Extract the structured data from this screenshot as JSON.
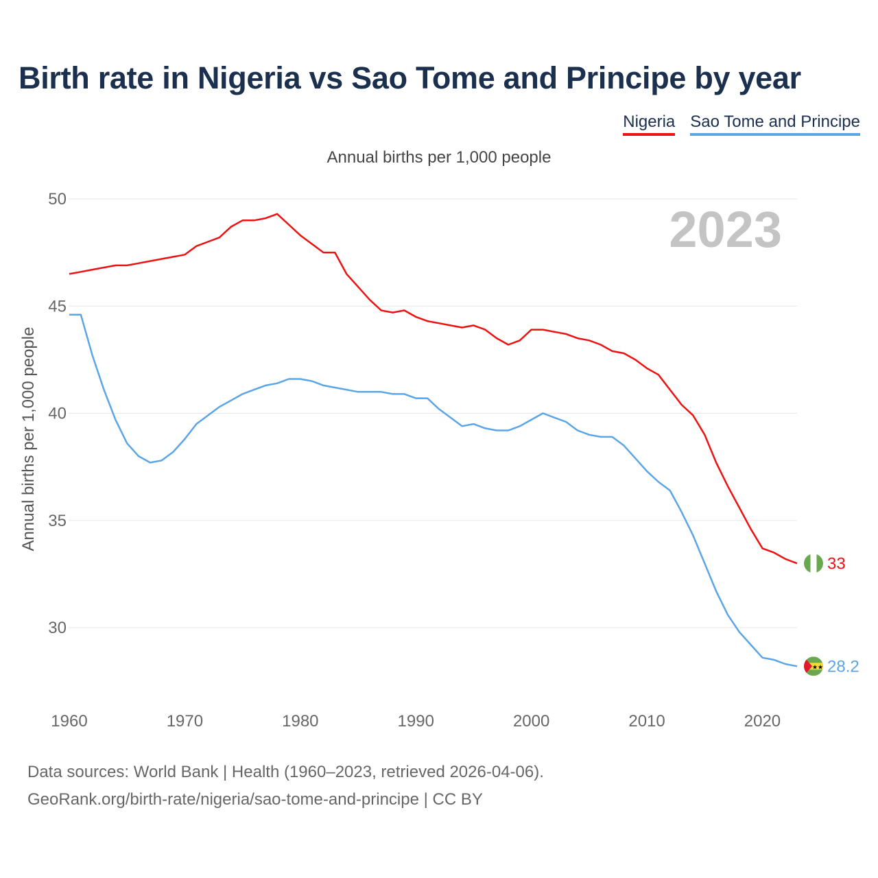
{
  "title": "Birth rate in Nigeria vs Sao Tome and Principe by year",
  "legend": [
    {
      "name": "Nigeria",
      "color": "#ee1111"
    },
    {
      "name": "Sao Tome and Principe",
      "color": "#5ba4e6"
    }
  ],
  "subtitle": "Annual births per 1,000 people",
  "year_overlay": "2023",
  "footer": {
    "line1": "Data sources: World Bank | Health (1960–2023, retrieved 2026-04-06).",
    "line2": "GeoRank.org/birth-rate/nigeria/sao-tome-and-principe | CC BY"
  },
  "chart_data": {
    "type": "line",
    "title": "Birth rate in Nigeria vs Sao Tome and Principe by year",
    "xlabel": "",
    "ylabel": "Annual births per 1,000 people",
    "xlim": [
      1960,
      2023
    ],
    "ylim": [
      27.5,
      50.5
    ],
    "xticks": [
      1960,
      1970,
      1980,
      1990,
      2000,
      2010,
      2020
    ],
    "yticks": [
      30,
      35,
      40,
      45,
      50
    ],
    "grid": true,
    "x": [
      1960,
      1961,
      1962,
      1963,
      1964,
      1965,
      1966,
      1967,
      1968,
      1969,
      1970,
      1971,
      1972,
      1973,
      1974,
      1975,
      1976,
      1977,
      1978,
      1979,
      1980,
      1981,
      1982,
      1983,
      1984,
      1985,
      1986,
      1987,
      1988,
      1989,
      1990,
      1991,
      1992,
      1993,
      1994,
      1995,
      1996,
      1997,
      1998,
      1999,
      2000,
      2001,
      2002,
      2003,
      2004,
      2005,
      2006,
      2007,
      2008,
      2009,
      2010,
      2011,
      2012,
      2013,
      2014,
      2015,
      2016,
      2017,
      2018,
      2019,
      2020,
      2021,
      2022,
      2023
    ],
    "series": [
      {
        "name": "Nigeria",
        "color": "#ee1111",
        "end_label": "33",
        "values": [
          46.5,
          46.6,
          46.7,
          46.8,
          46.9,
          46.9,
          47.0,
          47.1,
          47.2,
          47.3,
          47.4,
          47.8,
          48.0,
          48.2,
          48.7,
          49.0,
          49.0,
          49.1,
          49.3,
          48.8,
          48.3,
          47.9,
          47.5,
          47.5,
          46.5,
          45.9,
          45.3,
          44.8,
          44.7,
          44.8,
          44.5,
          44.3,
          44.2,
          44.1,
          44.0,
          44.1,
          43.9,
          43.5,
          43.2,
          43.4,
          43.9,
          43.9,
          43.8,
          43.7,
          43.5,
          43.4,
          43.2,
          42.9,
          42.8,
          42.5,
          42.1,
          41.8,
          41.1,
          40.4,
          39.9,
          39.0,
          37.7,
          36.6,
          35.6,
          34.6,
          33.7,
          33.5,
          33.2,
          33.0
        ]
      },
      {
        "name": "Sao Tome and Principe",
        "color": "#5ba4e6",
        "end_label": "28.2",
        "values": [
          44.6,
          44.6,
          42.7,
          41.1,
          39.7,
          38.6,
          38.0,
          37.7,
          37.8,
          38.2,
          38.8,
          39.5,
          39.9,
          40.3,
          40.6,
          40.9,
          41.1,
          41.3,
          41.4,
          41.6,
          41.6,
          41.5,
          41.3,
          41.2,
          41.1,
          41.0,
          41.0,
          41.0,
          40.9,
          40.9,
          40.7,
          40.7,
          40.2,
          39.8,
          39.4,
          39.5,
          39.3,
          39.2,
          39.2,
          39.4,
          39.7,
          40.0,
          39.8,
          39.6,
          39.2,
          39.0,
          38.9,
          38.9,
          38.5,
          37.9,
          37.3,
          36.8,
          36.4,
          35.4,
          34.3,
          33.0,
          31.7,
          30.6,
          29.8,
          29.2,
          28.6,
          28.5,
          28.3,
          28.2
        ]
      }
    ]
  }
}
